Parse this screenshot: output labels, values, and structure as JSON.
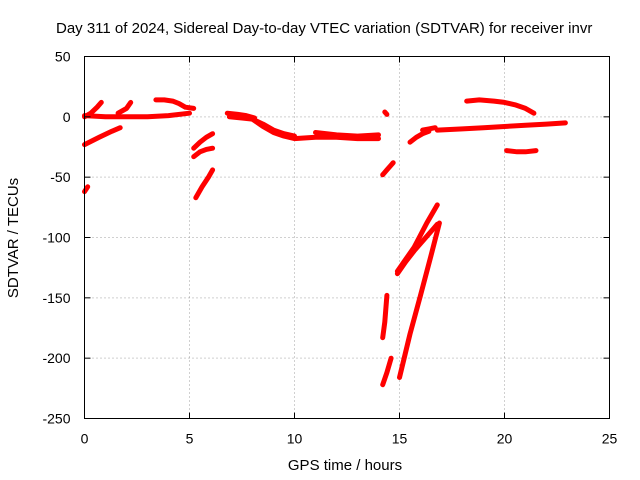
{
  "chart_data": {
    "type": "scatter",
    "title": "Day 311 of 2024, Sidereal Day-to-day VTEC variation (SDTVAR) for receiver invr",
    "xlabel": "GPS time / hours",
    "ylabel": "SDTVAR / TECUs",
    "xlim": [
      0,
      25
    ],
    "ylim": [
      -250,
      50
    ],
    "xticks": [
      0,
      5,
      10,
      15,
      20,
      25
    ],
    "yticks": [
      50,
      0,
      -50,
      -100,
      -150,
      -200,
      -250
    ],
    "xtick_labels": [
      "0",
      "5",
      "10",
      "15",
      "20",
      "25"
    ],
    "ytick_labels": [
      "50",
      "0",
      "-50",
      "-100",
      "-150",
      "-200",
      "-250"
    ],
    "grid": true,
    "marker": "plus",
    "color": "#ff0000",
    "series": [
      {
        "x": [
          0.0,
          0.3,
          0.6,
          0.8
        ],
        "y": [
          0,
          3,
          8,
          12
        ]
      },
      {
        "x": [
          0.0,
          0.7,
          1.3,
          1.7
        ],
        "y": [
          -23,
          -17,
          -12,
          -9
        ]
      },
      {
        "x": [
          0.0,
          1.0,
          2.0,
          3.0,
          4.0,
          5.0
        ],
        "y": [
          1,
          0,
          0,
          0,
          1,
          3
        ]
      },
      {
        "x": [
          1.6,
          2.0,
          2.2
        ],
        "y": [
          3,
          7,
          12
        ]
      },
      {
        "x": [
          3.4,
          3.8,
          4.2,
          4.5,
          4.8,
          5.2
        ],
        "y": [
          14,
          14,
          13,
          11,
          8,
          7
        ]
      },
      {
        "x": [
          0.0,
          0.15
        ],
        "y": [
          -62,
          -58
        ]
      },
      {
        "x": [
          5.2,
          5.5,
          5.8,
          6.1
        ],
        "y": [
          -26,
          -21,
          -17,
          -14
        ]
      },
      {
        "x": [
          5.2,
          5.5,
          5.8,
          6.1
        ],
        "y": [
          -33,
          -29,
          -27,
          -26
        ]
      },
      {
        "x": [
          5.3,
          5.6,
          5.9,
          6.1
        ],
        "y": [
          -67,
          -58,
          -50,
          -44
        ]
      },
      {
        "x": [
          6.8,
          7.3,
          7.7,
          8.1
        ],
        "y": [
          3,
          2,
          1,
          -1
        ]
      },
      {
        "x": [
          6.9,
          7.5,
          8.0,
          8.5,
          9.0,
          9.5,
          10.0
        ],
        "y": [
          0,
          -1,
          -2,
          -6,
          -11,
          -14,
          -16
        ]
      },
      {
        "x": [
          8.0,
          8.5,
          9.0,
          9.5,
          10.0,
          11.0,
          12.0,
          13.0,
          14.0
        ],
        "y": [
          -2,
          -8,
          -13,
          -16,
          -18,
          -17,
          -17,
          -18,
          -18
        ]
      },
      {
        "x": [
          11.0,
          12.0,
          13.0,
          14.0
        ],
        "y": [
          -13,
          -15,
          -16,
          -15
        ]
      },
      {
        "x": [
          14.3,
          14.4
        ],
        "y": [
          4,
          2
        ]
      },
      {
        "x": [
          14.2,
          14.4,
          14.6,
          14.7
        ],
        "y": [
          -48,
          -44,
          -40,
          -38
        ]
      },
      {
        "x": [
          14.2,
          14.3,
          14.4
        ],
        "y": [
          -183,
          -170,
          -148
        ]
      },
      {
        "x": [
          14.2,
          14.4,
          14.6
        ],
        "y": [
          -222,
          -212,
          -200
        ]
      },
      {
        "x": [
          14.9,
          15.3,
          15.7,
          16.0,
          16.3,
          16.8
        ],
        "y": [
          -128,
          -118,
          -108,
          -98,
          -88,
          -73
        ]
      },
      {
        "x": [
          14.9,
          15.3,
          15.7,
          16.1,
          16.6,
          16.8
        ],
        "y": [
          -130,
          -120,
          -111,
          -103,
          -93,
          -89
        ]
      },
      {
        "x": [
          15.0,
          15.5,
          16.0,
          16.5,
          16.9
        ],
        "y": [
          -216,
          -180,
          -148,
          -115,
          -88
        ]
      },
      {
        "x": [
          15.5,
          15.8,
          16.1,
          16.4
        ],
        "y": [
          -21,
          -17,
          -14,
          -12
        ]
      },
      {
        "x": [
          16.1,
          16.4,
          16.7
        ],
        "y": [
          -11,
          -10,
          -9
        ]
      },
      {
        "x": [
          16.8,
          18.0,
          19.0,
          20.0,
          21.0,
          22.0,
          22.9
        ],
        "y": [
          -11,
          -10,
          -9,
          -8,
          -7,
          -6,
          -5
        ]
      },
      {
        "x": [
          18.2,
          18.8,
          19.5,
          20.0,
          20.5,
          21.0,
          21.4
        ],
        "y": [
          13,
          14,
          13,
          12,
          10,
          7,
          3
        ]
      },
      {
        "x": [
          20.1,
          20.6,
          21.0,
          21.5
        ],
        "y": [
          -28,
          -29,
          -29,
          -28
        ]
      }
    ]
  }
}
